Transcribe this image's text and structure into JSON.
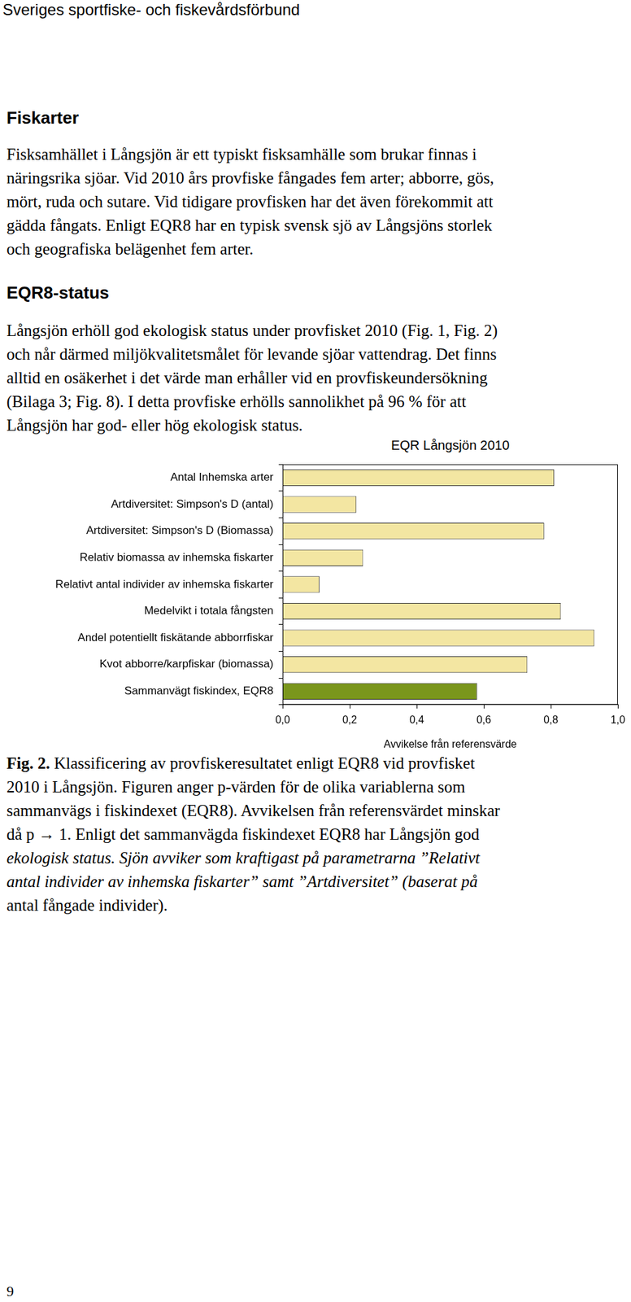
{
  "header": "Sveriges sportfiske- och fiskevårdsförbund",
  "sections": [
    {
      "heading": "Fiskarter",
      "lines": [
        "Fisksamhället i Långsjön är ett typiskt fisksamhälle som brukar finnas i",
        "näringsrika sjöar. Vid 2010 års provfiske fångades fem arter; abborre, gös,",
        "mört, ruda och sutare. Vid tidigare provfisken har det även förekommit att",
        "gädda fångats. Enligt EQR8 har en typisk svensk sjö av Långsjöns storlek",
        "och geografiska belägenhet fem arter."
      ]
    },
    {
      "heading": "EQR8-status",
      "lines": [
        "Långsjön erhöll god ekologisk status under provfisket 2010 (Fig. 1, Fig. 2)",
        "och når därmed miljökvalitetsmålet för levande sjöar vattendrag. Det finns",
        "alltid en osäkerhet i det värde man erhåller vid en provfiskeundersökning",
        "(Bilaga 3; Fig. 8). I detta provfiske erhölls sannolikhet på 96 % för att",
        "Långsjön har god- eller hög ekologisk status."
      ]
    }
  ],
  "chart_data": {
    "type": "bar",
    "orientation": "horizontal",
    "title": "EQR Långsjön 2010",
    "x_label": "Avvikelse från referensvärde",
    "categories": [
      "Antal Inhemska arter",
      "Artdiversitet: Simpson's D (antal)",
      "Artdiversitet: Simpson's D (Biomassa)",
      "Relativ biomassa av inhemska fiskarter",
      "Relativt antal individer av inhemska fiskarter",
      "Medelvikt i totala fångsten",
      "Andel potentiellt fiskätande abborrfiskar",
      "Kvot abborre/karpfiskar (biomassa)",
      "Sammanvägt fiskindex, EQR8"
    ],
    "values": [
      0.81,
      0.22,
      0.78,
      0.24,
      0.11,
      0.83,
      0.93,
      0.73,
      0.58
    ],
    "colors": [
      "#f3e6a2",
      "#f3e6a2",
      "#f3e6a2",
      "#f3e6a2",
      "#f3e6a2",
      "#f3e6a2",
      "#f3e6a2",
      "#f3e6a2",
      "#7a961c"
    ],
    "xlim": [
      0,
      1
    ],
    "xticks": [
      {
        "value": 0,
        "label": "0,0"
      },
      {
        "value": 0.2,
        "label": "0,2"
      },
      {
        "value": 0.4,
        "label": "0,4"
      },
      {
        "value": 0.6,
        "label": "0,6"
      },
      {
        "value": 0.8,
        "label": "0,8"
      },
      {
        "value": 1,
        "label": "1,0"
      }
    ],
    "grid": false
  },
  "caption": {
    "lines": [
      [
        {
          "text": "Fig. 2.",
          "style": "bold"
        },
        {
          "text": " Klassificering av provfiskeresultatet enligt EQR8 vid provfisket",
          "style": "normal"
        }
      ],
      [
        {
          "text": "2010 i Långsjön. Figuren anger p-värden för de olika variablerna som",
          "style": "normal"
        }
      ],
      [
        {
          "text": "sammanvägs i fiskindexet (EQR8). Avvikelsen från referensvärdet minskar",
          "style": "normal"
        }
      ],
      [
        {
          "text": "då p → 1. Enligt det sammanvägda fiskindexet EQR8 har Långsjön god",
          "style": "normal"
        }
      ],
      [
        {
          "text": "ekologisk status. Sjön avviker som kraftigast på parametrarna ”Relativt",
          "style": "italic"
        }
      ],
      [
        {
          "text": "antal individer av inhemska fiskarter” samt ”Artdiversitet” (baserat på",
          "style": "italic"
        }
      ],
      [
        {
          "text": "antal fångade individer).",
          "style": "normal"
        }
      ]
    ]
  },
  "page_number": "9"
}
